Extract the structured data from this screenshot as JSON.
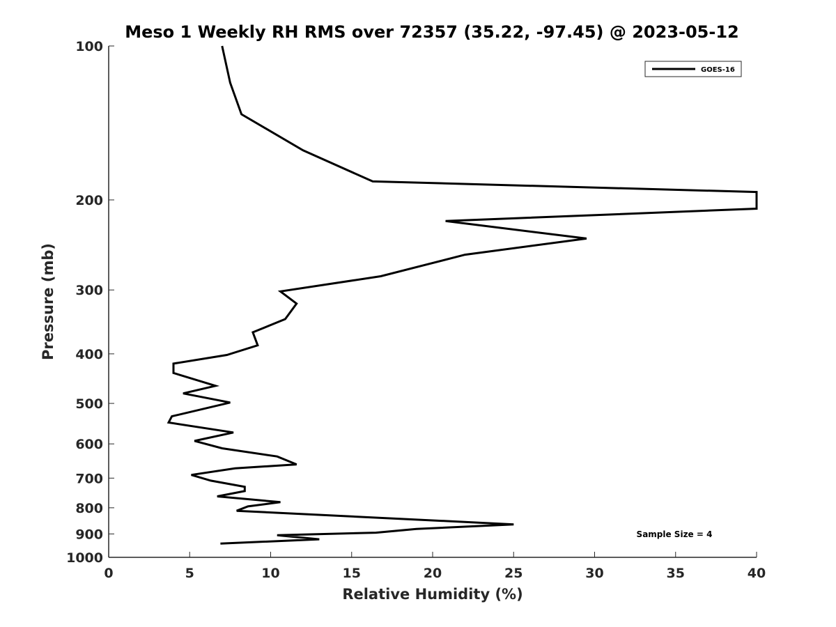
{
  "chart_data": {
    "type": "line",
    "title": "Meso 1 Weekly RH RMS over 72357 (35.22, -97.45) @ 2023-05-12",
    "xlabel": "Relative Humidity (%)",
    "ylabel": "Pressure (mb)",
    "xlim": [
      0,
      40
    ],
    "ylim": [
      100,
      1000
    ],
    "y_scale": "log",
    "y_reversed": true,
    "xticks": [
      0,
      5,
      10,
      15,
      20,
      25,
      30,
      35,
      40
    ],
    "yticks": [
      100,
      200,
      300,
      400,
      500,
      600,
      700,
      800,
      900,
      1000
    ],
    "grid": false,
    "legend_position": "top-right",
    "annotation": "Sample Size = 4",
    "series": [
      {
        "name": "GOES-16",
        "color": "#000000",
        "points": [
          [
            7.0,
            100
          ],
          [
            7.5,
            118
          ],
          [
            8.2,
            136
          ],
          [
            12.0,
            160
          ],
          [
            16.3,
            184
          ],
          [
            40.0,
            193
          ],
          [
            40.0,
            208
          ],
          [
            20.8,
            220
          ],
          [
            29.5,
            238
          ],
          [
            22.0,
            256
          ],
          [
            16.8,
            282
          ],
          [
            10.6,
            302
          ],
          [
            11.6,
            319
          ],
          [
            10.9,
            342
          ],
          [
            8.9,
            363
          ],
          [
            9.2,
            385
          ],
          [
            7.3,
            402
          ],
          [
            4.0,
            418
          ],
          [
            4.0,
            436
          ],
          [
            6.6,
            462
          ],
          [
            4.6,
            478
          ],
          [
            7.5,
            498
          ],
          [
            3.9,
            530
          ],
          [
            3.7,
            545
          ],
          [
            7.7,
            570
          ],
          [
            5.3,
            592
          ],
          [
            7.0,
            612
          ],
          [
            10.4,
            635
          ],
          [
            11.6,
            658
          ],
          [
            7.8,
            670
          ],
          [
            5.1,
            690
          ],
          [
            6.3,
            708
          ],
          [
            8.4,
            728
          ],
          [
            8.4,
            742
          ],
          [
            6.7,
            760
          ],
          [
            10.6,
            780
          ],
          [
            8.6,
            795
          ],
          [
            7.9,
            811
          ],
          [
            25.0,
            862
          ],
          [
            19.0,
            880
          ],
          [
            16.5,
            895
          ],
          [
            10.4,
            905
          ],
          [
            13.0,
            922
          ],
          [
            6.9,
            940
          ]
        ]
      }
    ]
  }
}
